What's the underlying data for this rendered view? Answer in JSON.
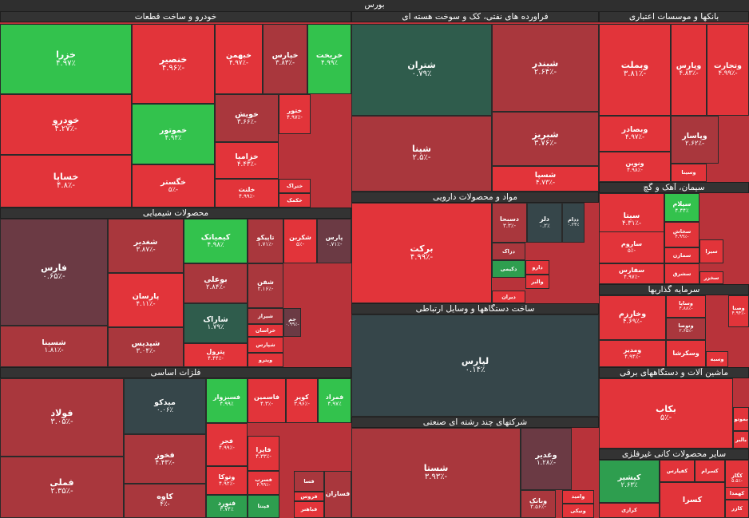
{
  "chart_data": {
    "type": "treemap",
    "title": "بورس",
    "colors": {
      "dark_red": "#a9373d",
      "red": "#e2343a",
      "bright_red": "#ff3b3b",
      "dark_green": "#2f5c4c",
      "green": "#2e9e4f",
      "bright_green": "#33c24d",
      "neutral": "#4b4548",
      "slate": "#36464a",
      "maroon": "#6b3a44"
    },
    "sectors": [
      {
        "name": "خودرو و ساخت قطعات",
        "tiles": [
          {
            "name": "خزرا",
            "pct": "۴.۹۷٪",
            "color": "bright_green"
          },
          {
            "name": "خودرو",
            "pct": "-۴.۲۷٪",
            "color": "red"
          },
          {
            "name": "خساپا",
            "pct": "-۴.۸٪",
            "color": "red"
          },
          {
            "name": "خنصیر",
            "pct": "-۴.۹۶٪",
            "color": "red"
          },
          {
            "name": "خموتور",
            "pct": "۴.۹۴٪",
            "color": "bright_green"
          },
          {
            "name": "خگستر",
            "pct": "-۵٪",
            "color": "red"
          },
          {
            "name": "خبهمن",
            "pct": "-۴.۹۷٪",
            "color": "red"
          },
          {
            "name": "خپارس",
            "pct": "-۳.۸۳٪",
            "color": "dark_red"
          },
          {
            "name": "خریخت",
            "pct": "۴.۹۹٪",
            "color": "bright_green"
          },
          {
            "name": "خویش",
            "pct": "-۳.۶۶٪",
            "color": "dark_red"
          },
          {
            "name": "ختور",
            "pct": "-۴.۹۷٪",
            "color": "red"
          },
          {
            "name": "خزامیا",
            "pct": "-۴.۴۳٪",
            "color": "red"
          },
          {
            "name": "خلنت",
            "pct": "-۴.۹۹٪",
            "color": "red"
          },
          {
            "name": "ختراک",
            "pct": "",
            "color": "red"
          },
          {
            "name": "خکمک",
            "pct": "",
            "color": "red"
          }
        ]
      },
      {
        "name": "فراورده های نفتی، کک و سوخت هسته ای",
        "tiles": [
          {
            "name": "شتران",
            "pct": "۰.۷۹٪",
            "color": "dark_green"
          },
          {
            "name": "شپنا",
            "pct": "-۲.۵٪",
            "color": "dark_red"
          },
          {
            "name": "شبندر",
            "pct": "-۲.۶۴٪",
            "color": "dark_red"
          },
          {
            "name": "شبریز",
            "pct": "-۳.۷۶٪",
            "color": "dark_red"
          },
          {
            "name": "شسپا",
            "pct": "-۴.۷۳٪",
            "color": "red"
          }
        ]
      },
      {
        "name": "بانکها و موسسات اعتباری",
        "tiles": [
          {
            "name": "وبملت",
            "pct": "-۳.۸۱٪",
            "color": "red"
          },
          {
            "name": "وپارس",
            "pct": "-۴.۸۳٪",
            "color": "red"
          },
          {
            "name": "وتجارت",
            "pct": "-۴.۹۹٪",
            "color": "red"
          },
          {
            "name": "وبصادر",
            "pct": "-۴.۹۷٪",
            "color": "red"
          },
          {
            "name": "ونوین",
            "pct": "-۴.۹۸٪",
            "color": "red"
          },
          {
            "name": "وپاسار",
            "pct": "-۲.۶۲٪",
            "color": "dark_red"
          },
          {
            "name": "وسینا",
            "pct": "",
            "color": "red"
          }
        ]
      },
      {
        "name": "محصولات شیمیایی",
        "tiles": [
          {
            "name": "فارس",
            "pct": "-۰.۶۵٪",
            "color": "maroon"
          },
          {
            "name": "شسینا",
            "pct": "-۱.۸۱٪",
            "color": "dark_red"
          },
          {
            "name": "نوری",
            "pct": "-۳.۶٪",
            "color": "red"
          },
          {
            "name": "شغدیر",
            "pct": "-۳.۸۷٪",
            "color": "dark_red"
          },
          {
            "name": "پارسان",
            "pct": "-۴.۱۱٪",
            "color": "red"
          },
          {
            "name": "شپدیس",
            "pct": "-۳.۰۴٪",
            "color": "dark_red"
          },
          {
            "name": "کیمیاتک",
            "pct": "۴.۹۸٪",
            "color": "bright_green"
          },
          {
            "name": "تاپیکو",
            "pct": "-۱.۷۱٪",
            "color": "dark_red"
          },
          {
            "name": "شکربن",
            "pct": "-۵٪",
            "color": "red"
          },
          {
            "name": "پارس",
            "pct": "-۰.۷۱٪",
            "color": "maroon"
          },
          {
            "name": "بوعلی",
            "pct": "-۲.۸۴٪",
            "color": "dark_red"
          },
          {
            "name": "شفن",
            "pct": "-۲.۱۶٪",
            "color": "dark_red"
          },
          {
            "name": "شاراک",
            "pct": "۱.۷۹٪",
            "color": "dark_green"
          },
          {
            "name": "پترول",
            "pct": "-۴.۴۴٪",
            "color": "red"
          },
          {
            "name": "شیراز",
            "pct": "",
            "color": "dark_red"
          },
          {
            "name": "خراسان",
            "pct": "",
            "color": "red"
          },
          {
            "name": "شپارس",
            "pct": "",
            "color": "red"
          },
          {
            "name": "وپترو",
            "pct": "",
            "color": "red"
          },
          {
            "name": "جم",
            "pct": "-۰.۹۹٪",
            "color": "maroon"
          }
        ]
      },
      {
        "name": "مواد و محصولات دارویی",
        "tiles": [
          {
            "name": "برکت",
            "pct": "-۴.۹۹٪",
            "color": "red"
          },
          {
            "name": "دسبحا",
            "pct": "-۳.۳٪",
            "color": "dark_red"
          },
          {
            "name": "دلر",
            "pct": "۰.۲٪",
            "color": "slate"
          },
          {
            "name": "ددام",
            "pct": "۰.۲۴٪",
            "color": "slate"
          },
          {
            "name": "دزاک",
            "pct": "",
            "color": "dark_red"
          },
          {
            "name": "دکیمی",
            "pct": "",
            "color": "green"
          },
          {
            "name": "دارو",
            "pct": "",
            "color": "red"
          },
          {
            "name": "والبر",
            "pct": "",
            "color": "red"
          },
          {
            "name": "دیران",
            "pct": "",
            "color": "red"
          }
        ]
      },
      {
        "name": "ساخت دستگاهها و وسایل ارتباطی",
        "tiles": [
          {
            "name": "لپارس",
            "pct": "۰.۱۴٪",
            "color": "slate"
          }
        ]
      },
      {
        "name": "شرکتهای چند رشته ای صنعتی",
        "tiles": [
          {
            "name": "شستا",
            "pct": "-۳.۹۳٪",
            "color": "dark_red"
          },
          {
            "name": "وغدیر",
            "pct": "-۱.۲۸٪",
            "color": "maroon"
          },
          {
            "name": "وبانک",
            "pct": "-۳.۵۶٪",
            "color": "dark_red"
          },
          {
            "name": "وامید",
            "pct": "",
            "color": "red"
          },
          {
            "name": "ونیکی",
            "pct": "",
            "color": "red"
          }
        ]
      },
      {
        "name": "سیمان، آهک و گچ",
        "tiles": [
          {
            "name": "سیتا",
            "pct": "-۴.۳۱٪",
            "color": "red"
          },
          {
            "name": "سیلام",
            "pct": "۴.۴۴٪",
            "color": "bright_green"
          },
          {
            "name": "سخاش",
            "pct": "-۴.۹۹٪",
            "color": "red"
          },
          {
            "name": "ساروم",
            "pct": "-۵٪",
            "color": "red"
          },
          {
            "name": "سمازن",
            "pct": "",
            "color": "red"
          },
          {
            "name": "سفارس",
            "pct": "-۴.۹۷٪",
            "color": "red"
          },
          {
            "name": "سشرق",
            "pct": "",
            "color": "red"
          },
          {
            "name": "سیرا",
            "pct": "",
            "color": "red"
          },
          {
            "name": "سخزر",
            "pct": "",
            "color": "red"
          }
        ]
      },
      {
        "name": "سرمایه گذاریها",
        "tiles": [
          {
            "name": "وخارزم",
            "pct": "-۴.۶۹٪",
            "color": "red"
          },
          {
            "name": "وساپا",
            "pct": "-۴.۸۸٪",
            "color": "red"
          },
          {
            "name": "وتوصا",
            "pct": "-۲.۶۵٪",
            "color": "dark_red"
          },
          {
            "name": "ومدیر",
            "pct": "-۴.۹۴٪",
            "color": "red"
          },
          {
            "name": "وسکرشا",
            "pct": "",
            "color": "red"
          },
          {
            "name": "وصنا",
            "pct": "-۴.۹۴٪",
            "color": "red"
          },
          {
            "name": "وسبه",
            "pct": "",
            "color": "red"
          }
        ]
      },
      {
        "name": "ماشین آلات و دستگاههای برقی",
        "tiles": [
          {
            "name": "بکاب",
            "pct": "-۵٪",
            "color": "red"
          },
          {
            "name": "بموتو",
            "pct": "",
            "color": "red"
          },
          {
            "name": "بالبر",
            "pct": "",
            "color": "red"
          }
        ]
      },
      {
        "name": "فلزات اساسی",
        "tiles": [
          {
            "name": "فولاد",
            "pct": "-۳.۰۵٪",
            "color": "dark_red"
          },
          {
            "name": "فملی",
            "pct": "-۲.۳۵٪",
            "color": "dark_red"
          },
          {
            "name": "میدکو",
            "pct": "۰.۰۶٪",
            "color": "slate"
          },
          {
            "name": "فسبزوار",
            "pct": "۴.۹۹٪",
            "color": "bright_green"
          },
          {
            "name": "فاسمین",
            "pct": "-۴.۳٪",
            "color": "red"
          },
          {
            "name": "کویر",
            "pct": "-۳.۹۶٪",
            "color": "red"
          },
          {
            "name": "فمراد",
            "pct": "۴.۹۷٪",
            "color": "bright_green"
          },
          {
            "name": "فخوز",
            "pct": "-۴.۴۳٪",
            "color": "dark_red"
          },
          {
            "name": "فجر",
            "pct": "-۴.۹۹٪",
            "color": "red"
          },
          {
            "name": "کاوه",
            "pct": "-۴٪",
            "color": "dark_red"
          },
          {
            "name": "وتوکا",
            "pct": "-۴.۹۲٪",
            "color": "red"
          },
          {
            "name": "فنورد",
            "pct": "۳.۷۴٪",
            "color": "green"
          },
          {
            "name": "فایرا",
            "pct": "-۴.۳۳٪",
            "color": "red"
          },
          {
            "name": "فسرب",
            "pct": "-۴.۹۹٪",
            "color": "red"
          },
          {
            "name": "فسا",
            "pct": "",
            "color": "dark_red"
          },
          {
            "name": "فروس",
            "pct": "",
            "color": "red"
          },
          {
            "name": "فباهنر",
            "pct": "",
            "color": "red"
          },
          {
            "name": "فپنتا",
            "pct": "",
            "color": "green"
          },
          {
            "name": "فسازان",
            "pct": "",
            "color": "dark_red"
          }
        ]
      },
      {
        "name": "سایر محصولات کانی غیرفلزی",
        "tiles": [
          {
            "name": "کیشیر",
            "pct": "۲.۶۳٪",
            "color": "green"
          },
          {
            "name": "کفپارس",
            "pct": "",
            "color": "red"
          },
          {
            "name": "کسرام",
            "pct": "",
            "color": "red"
          },
          {
            "name": "کگاز",
            "pct": "-۵.۵٪",
            "color": "red"
          },
          {
            "name": "کهمدا",
            "pct": "",
            "color": "red"
          },
          {
            "name": "کرازی",
            "pct": "",
            "color": "red"
          },
          {
            "name": "کسرا",
            "pct": "",
            "color": "red"
          },
          {
            "name": "کازر",
            "pct": "",
            "color": "red"
          }
        ]
      }
    ]
  }
}
